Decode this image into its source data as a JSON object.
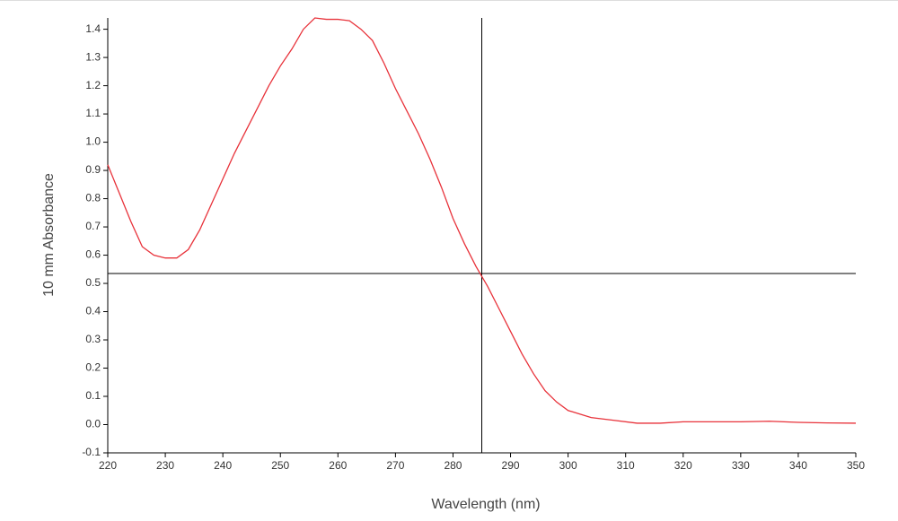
{
  "chart_data": {
    "type": "line",
    "x_label": "Wavelength (nm)",
    "y_label": "10 mm Absorbance",
    "x": [
      220,
      222,
      224,
      226,
      228,
      230,
      232,
      234,
      236,
      238,
      240,
      242,
      244,
      246,
      248,
      250,
      252,
      254,
      256,
      258,
      260,
      262,
      264,
      266,
      268,
      270,
      272,
      274,
      276,
      278,
      280,
      282,
      284,
      286,
      288,
      290,
      292,
      294,
      296,
      298,
      300,
      304,
      308,
      312,
      316,
      320,
      325,
      330,
      335,
      340,
      345,
      350
    ],
    "series": [
      {
        "color": "#e8323a",
        "values": [
          0.92,
          0.82,
          0.72,
          0.63,
          0.6,
          0.59,
          0.59,
          0.62,
          0.69,
          0.78,
          0.87,
          0.96,
          1.04,
          1.12,
          1.2,
          1.27,
          1.33,
          1.4,
          1.44,
          1.435,
          1.435,
          1.43,
          1.4,
          1.36,
          1.28,
          1.19,
          1.11,
          1.03,
          0.94,
          0.84,
          0.73,
          0.64,
          0.56,
          0.49,
          0.41,
          0.33,
          0.25,
          0.18,
          0.12,
          0.08,
          0.05,
          0.025,
          0.015,
          0.005,
          0.005,
          0.01,
          0.01,
          0.01,
          0.012,
          0.008,
          0.006,
          0.005
        ]
      }
    ],
    "cursor": {
      "x": 285,
      "y": 0.535
    },
    "xlim": [
      220,
      350
    ],
    "xticks": [
      220,
      230,
      240,
      250,
      260,
      270,
      280,
      290,
      300,
      310,
      320,
      330,
      340,
      350
    ],
    "ylim": [
      -0.1,
      1.44
    ],
    "yticks": [
      -0.1,
      {
        "value": 0,
        "label": "0.0"
      },
      0.1,
      0.2,
      0.3,
      0.4,
      0.5,
      0.6,
      0.7,
      0.8,
      0.9,
      {
        "value": 1,
        "label": "1.0"
      },
      1.1,
      1.2,
      1.3,
      1.4
    ]
  }
}
